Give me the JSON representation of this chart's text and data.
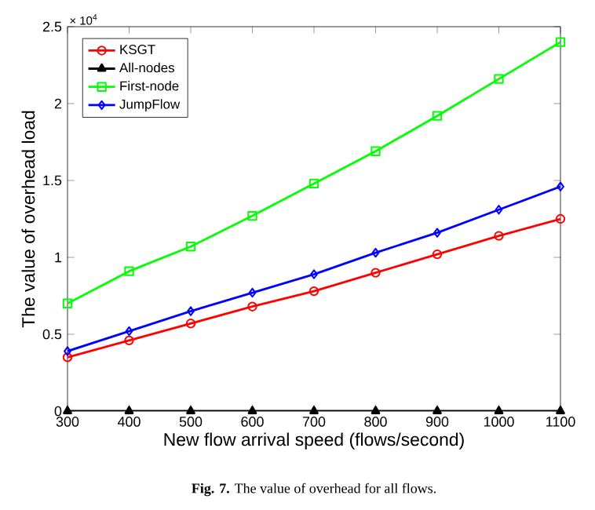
{
  "chart_data": {
    "type": "line",
    "xlabel": "New flow arrival speed (flows/second)",
    "ylabel": "The value of overhead load",
    "x": [
      300,
      400,
      500,
      600,
      700,
      800,
      900,
      1000,
      1100
    ],
    "series": [
      {
        "name": "KSGT",
        "color": "#ff0000",
        "marker": "circle",
        "values": [
          0.35,
          0.46,
          0.57,
          0.68,
          0.78,
          0.9,
          1.02,
          1.14,
          1.25
        ]
      },
      {
        "name": "All-nodes",
        "color": "#000000",
        "marker": "triangle",
        "values": [
          0,
          0,
          0,
          0,
          0,
          0,
          0,
          0,
          0
        ]
      },
      {
        "name": "First-node",
        "color": "#00ff00",
        "marker": "square",
        "values": [
          0.7,
          0.91,
          1.07,
          1.27,
          1.48,
          1.69,
          1.92,
          2.16,
          2.4
        ]
      },
      {
        "name": "JumpFlow",
        "color": "#0000ff",
        "marker": "diamond",
        "values": [
          0.39,
          0.52,
          0.65,
          0.77,
          0.89,
          1.03,
          1.16,
          1.31,
          1.46
        ]
      }
    ],
    "xlim": [
      300,
      1100
    ],
    "xticks": [
      300,
      400,
      500,
      600,
      700,
      800,
      900,
      1000,
      1100
    ],
    "ylim": [
      0,
      2.5
    ],
    "yticks": [
      0,
      0.5,
      1,
      1.5,
      2,
      2.5
    ],
    "legend": "top left",
    "grid": false,
    "line_style": "solid",
    "annotations": [
      "× 10$^{4}$",
      "**Fig. 7.** The value of overhead for all flows."
    ]
  }
}
